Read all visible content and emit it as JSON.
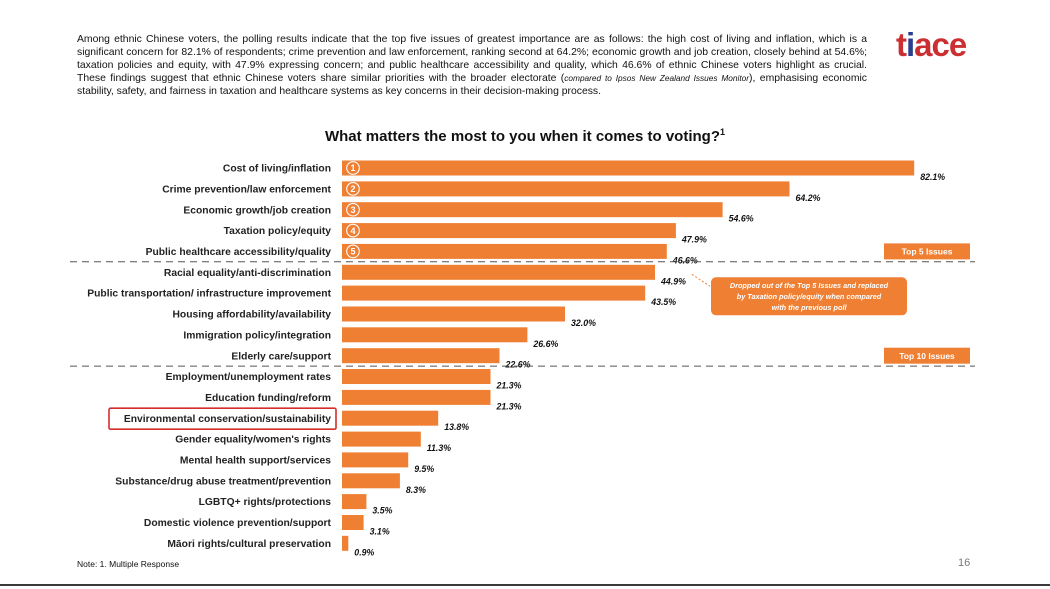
{
  "intro": {
    "part1": "Among ethnic Chinese voters, the polling results indicate that the top five issues of greatest importance are as follows: the high cost of living and inflation, which is a significant concern for 82.1% of respondents; crime prevention and law enforcement, ranking second at 64.2%; economic growth and job creation, closely behind at 54.6%; taxation policies and equity, with 47.9% expressing concern; and public healthcare accessibility and quality, which 46.6% of ethnic Chinese voters highlight as crucial. These findings suggest that ethnic Chinese voters share similar priorities with the broader electorate (",
    "italic": "compared to Ipsos New Zealand Issues Monitor",
    "part2": "), emphasising economic stability, safety, and fairness in taxation and healthcare systems as key concerns in their decision-making process."
  },
  "logo": {
    "text_a": "t",
    "text_b": "i",
    "text_c": "ace"
  },
  "footer": {
    "note": "Note: 1. Multiple Response",
    "page_number": "16"
  },
  "colors": {
    "bar": "#ef7f33",
    "highlight_box": "#d32f2f",
    "divider": "#555555",
    "logo_red": "#cc2f31",
    "logo_blue": "#2a3d8f"
  },
  "chart_data": {
    "type": "bar",
    "orientation": "horizontal",
    "title": "What matters the most to you when it comes to voting?",
    "title_footnote": "1",
    "categories": [
      "Cost of living/inflation",
      "Crime prevention/law enforcement",
      "Economic growth/job creation",
      "Taxation policy/equity",
      "Public healthcare accessibility/quality",
      "Racial equality/anti-discrimination",
      "Public transportation/ infrastructure improvement",
      "Housing affordability/availability",
      "Immigration policy/integration",
      "Elderly care/support",
      "Employment/unemployment rates",
      "Education funding/reform",
      "Environmental conservation/sustainability",
      "Gender equality/women's rights",
      "Mental health support/services",
      "Substance/drug abuse treatment/prevention",
      "LGBTQ+ rights/protections",
      "Domestic violence prevention/support",
      "Māori rights/cultural preservation"
    ],
    "values": [
      82.1,
      64.2,
      54.6,
      47.9,
      46.6,
      44.9,
      43.5,
      32.0,
      26.6,
      22.6,
      21.3,
      21.3,
      13.8,
      11.3,
      9.5,
      8.3,
      3.5,
      3.1,
      0.9
    ],
    "value_labels": [
      "82.1%",
      "64.2%",
      "54.6%",
      "47.9%",
      "46.6%",
      "44.9%",
      "43.5%",
      "32.0%",
      "26.6%",
      "22.6%",
      "21.3%",
      "21.3%",
      "13.8%",
      "11.3%",
      "9.5%",
      "8.3%",
      "3.5%",
      "3.1%",
      "0.9%"
    ],
    "rank_markers": [
      "1",
      "2",
      "3",
      "4",
      "5"
    ],
    "highlighted_category": "Environmental conservation/sustainability",
    "groups": [
      {
        "label": "Top 5 Issues",
        "first_index": 0,
        "last_index": 4
      },
      {
        "label": "Top 10 Issues",
        "first_index": 5,
        "last_index": 9
      }
    ],
    "annotation": {
      "category_index": 5,
      "text_lines": [
        "Dropped out of the Top 5 Issues and replaced",
        "by Taxation policy/equity when compared",
        "with the previous poll"
      ]
    },
    "xlim": [
      0,
      100
    ],
    "grid": false,
    "legend": "none"
  }
}
